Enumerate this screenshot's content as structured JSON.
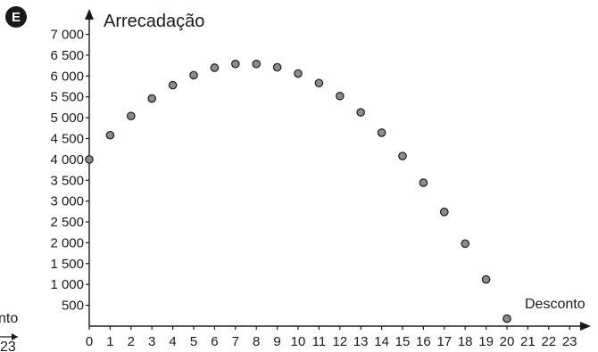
{
  "panel_badge": "E",
  "left_fragment": {
    "label": "nto",
    "tick": "23"
  },
  "chart_data": {
    "type": "scatter",
    "ylabel": "Arrecadação",
    "xlabel": "Desconto",
    "xlim": [
      0,
      23
    ],
    "ylim": [
      0,
      7000
    ],
    "x_ticks": [
      "0",
      "1",
      "2",
      "3",
      "4",
      "5",
      "6",
      "7",
      "8",
      "9",
      "10",
      "11",
      "12",
      "13",
      "14",
      "15",
      "16",
      "17",
      "18",
      "19",
      "20",
      "21",
      "22",
      "23"
    ],
    "y_ticks": [
      "500",
      "1 000",
      "1 500",
      "2 000",
      "2 500",
      "3 000",
      "3 500",
      "4 000",
      "4 500",
      "5 000",
      "5 500",
      "6 000",
      "6 500",
      "7 000"
    ],
    "x": [
      0,
      1,
      2,
      3,
      4,
      5,
      6,
      7,
      8,
      9,
      10,
      11,
      12,
      13,
      14,
      15,
      16,
      17,
      18,
      19,
      20
    ],
    "y": [
      4000,
      4580,
      5040,
      5460,
      5780,
      6020,
      6200,
      6290,
      6290,
      6210,
      6060,
      5830,
      5520,
      5130,
      4640,
      4080,
      3440,
      2740,
      1980,
      1120,
      180
    ],
    "colors": {
      "marker_fill": "#8c8c8c",
      "marker_stroke": "#1a1a1a",
      "axis": "#1a1a1a"
    }
  }
}
